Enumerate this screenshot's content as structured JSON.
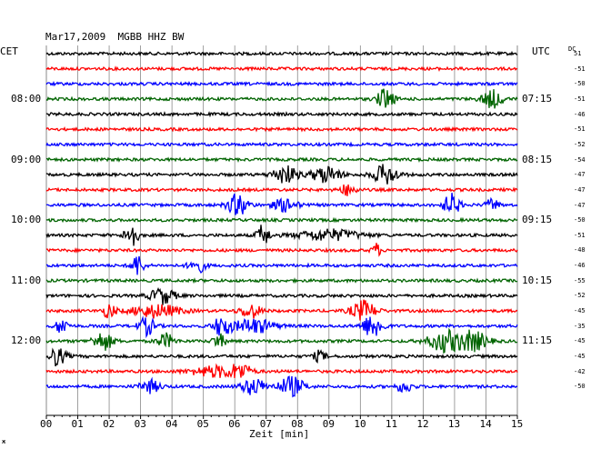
{
  "header": {
    "date": "Mar17,2009",
    "station": "MGBB HHZ BW"
  },
  "axes": {
    "left_timezone": "CET",
    "right_timezone": "UTC",
    "dc_label": "DC",
    "x_title": "Zeit [min]",
    "x_ticks": [
      "00",
      "01",
      "02",
      "03",
      "04",
      "05",
      "06",
      "07",
      "08",
      "09",
      "10",
      "11",
      "12",
      "13",
      "14",
      "15"
    ]
  },
  "left_times": [
    {
      "row": 4,
      "label": "08:00"
    },
    {
      "row": 8,
      "label": "09:00"
    },
    {
      "row": 12,
      "label": "10:00"
    },
    {
      "row": 16,
      "label": "11:00"
    },
    {
      "row": 20,
      "label": "12:00"
    }
  ],
  "right_times": [
    {
      "row": 4,
      "label": "07:15"
    },
    {
      "row": 8,
      "label": "08:15"
    },
    {
      "row": 12,
      "label": "09:15"
    },
    {
      "row": 16,
      "label": "10:15"
    },
    {
      "row": 20,
      "label": "11:15"
    }
  ],
  "dc_values": [
    "51",
    "-51",
    "-50",
    "-51",
    "-46",
    "-51",
    "-52",
    "-54",
    "-47",
    "-47",
    "-47",
    "-50",
    "-51",
    "-48",
    "-46",
    "-55",
    "-52",
    "-45",
    "-35",
    "-45",
    "-45",
    "-42",
    "-50"
  ],
  "colors": {
    "black": "#000000",
    "red": "#ff0000",
    "blue": "#0000ff",
    "green": "#006400",
    "grid": "#888888"
  },
  "corner_mark": "ж",
  "chart_data": {
    "type": "line",
    "title": "Mar17,2009 MGBB HHZ BW",
    "xlabel": "Zeit [min]",
    "xlim": [
      0,
      15
    ],
    "trace_count": 23,
    "color_cycle": [
      "black",
      "red",
      "blue",
      "green"
    ],
    "events": [
      {
        "trace": 4,
        "t": 10.8,
        "amp": 12,
        "dur": 0.4
      },
      {
        "trace": 4,
        "t": 14.2,
        "amp": 10,
        "dur": 0.5
      },
      {
        "trace": 9,
        "t": 7.6,
        "amp": 10,
        "dur": 0.6
      },
      {
        "trace": 9,
        "t": 8.9,
        "amp": 9,
        "dur": 0.7
      },
      {
        "trace": 9,
        "t": 10.8,
        "amp": 11,
        "dur": 0.6
      },
      {
        "trace": 10,
        "t": 9.6,
        "amp": 6,
        "dur": 0.4
      },
      {
        "trace": 11,
        "t": 6.1,
        "amp": 12,
        "dur": 0.5
      },
      {
        "trace": 11,
        "t": 7.6,
        "amp": 7,
        "dur": 0.6
      },
      {
        "trace": 11,
        "t": 12.9,
        "amp": 12,
        "dur": 0.4
      },
      {
        "trace": 11,
        "t": 14.2,
        "amp": 7,
        "dur": 0.3
      },
      {
        "trace": 13,
        "t": 2.7,
        "amp": 16,
        "dur": 0.3
      },
      {
        "trace": 13,
        "t": 6.9,
        "amp": 12,
        "dur": 0.3
      },
      {
        "trace": 13,
        "t": 9.0,
        "amp": 6,
        "dur": 1.5
      },
      {
        "trace": 14,
        "t": 10.5,
        "amp": 8,
        "dur": 0.2
      },
      {
        "trace": 15,
        "t": 2.9,
        "amp": 12,
        "dur": 0.3
      },
      {
        "trace": 15,
        "t": 4.8,
        "amp": 8,
        "dur": 0.4
      },
      {
        "trace": 17,
        "t": 3.7,
        "amp": 9,
        "dur": 0.6
      },
      {
        "trace": 18,
        "t": 2.0,
        "amp": 8,
        "dur": 0.3
      },
      {
        "trace": 18,
        "t": 3.5,
        "amp": 7,
        "dur": 1.2
      },
      {
        "trace": 18,
        "t": 6.5,
        "amp": 8,
        "dur": 0.5
      },
      {
        "trace": 18,
        "t": 10.1,
        "amp": 11,
        "dur": 0.6
      },
      {
        "trace": 19,
        "t": 0.5,
        "amp": 9,
        "dur": 0.3
      },
      {
        "trace": 19,
        "t": 3.2,
        "amp": 10,
        "dur": 0.4
      },
      {
        "trace": 19,
        "t": 5.6,
        "amp": 12,
        "dur": 0.4
      },
      {
        "trace": 19,
        "t": 6.6,
        "amp": 8,
        "dur": 1.0
      },
      {
        "trace": 19,
        "t": 10.4,
        "amp": 13,
        "dur": 0.5
      },
      {
        "trace": 20,
        "t": 1.8,
        "amp": 10,
        "dur": 0.5
      },
      {
        "trace": 20,
        "t": 3.8,
        "amp": 8,
        "dur": 0.4
      },
      {
        "trace": 20,
        "t": 5.5,
        "amp": 8,
        "dur": 0.3
      },
      {
        "trace": 20,
        "t": 12.7,
        "amp": 12,
        "dur": 0.8
      },
      {
        "trace": 20,
        "t": 13.6,
        "amp": 11,
        "dur": 0.7
      },
      {
        "trace": 21,
        "t": 0.3,
        "amp": 10,
        "dur": 0.5
      },
      {
        "trace": 21,
        "t": 8.7,
        "amp": 6,
        "dur": 0.3
      },
      {
        "trace": 22,
        "t": 5.4,
        "amp": 6,
        "dur": 1.2
      },
      {
        "trace": 22,
        "t": 6.2,
        "amp": 7,
        "dur": 0.5
      },
      {
        "trace": 23,
        "t": 3.3,
        "amp": 7,
        "dur": 0.5
      },
      {
        "trace": 23,
        "t": 6.6,
        "amp": 9,
        "dur": 0.6
      },
      {
        "trace": 23,
        "t": 7.8,
        "amp": 11,
        "dur": 0.6
      },
      {
        "trace": 23,
        "t": 11.4,
        "amp": 6,
        "dur": 0.4
      }
    ]
  }
}
